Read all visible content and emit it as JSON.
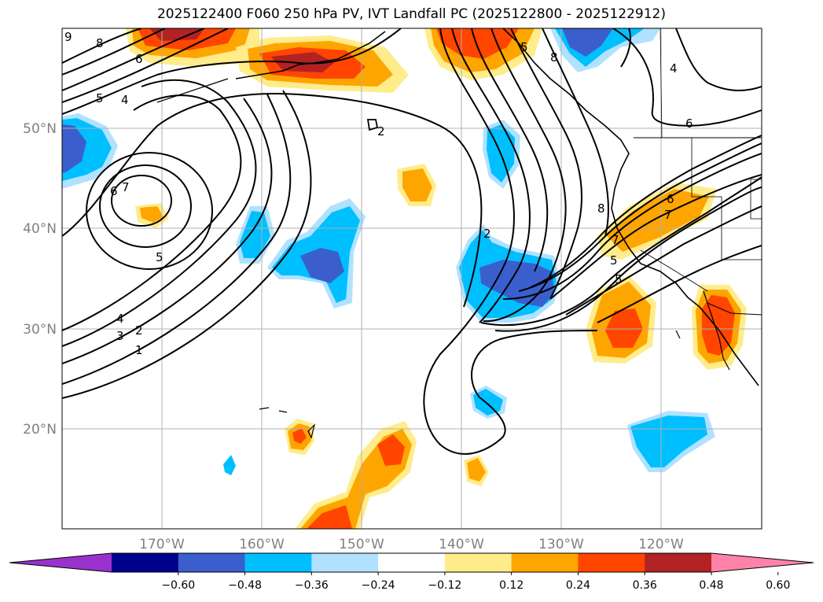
{
  "title": "2025122400 F060 250 hPa PV, IVT Landfall PC (2025122800 - 2025122912)",
  "map": {
    "lon_range": [
      -180,
      -110
    ],
    "lat_range": [
      10,
      60
    ],
    "lat_ticks": [
      {
        "value": 50,
        "label": "50°N"
      },
      {
        "value": 40,
        "label": "40°N"
      },
      {
        "value": 30,
        "label": "30°N"
      },
      {
        "value": 20,
        "label": "20°N"
      }
    ],
    "lon_ticks": [
      {
        "value": -170,
        "label": "170°W"
      },
      {
        "value": -160,
        "label": "160°W"
      },
      {
        "value": -150,
        "label": "150°W"
      },
      {
        "value": -140,
        "label": "140°W"
      },
      {
        "value": -130,
        "label": "130°W"
      },
      {
        "value": -120,
        "label": "120°W"
      }
    ],
    "gridlines": true,
    "pv_contour_labels": [
      "9",
      "8",
      "6",
      "5",
      "4",
      "7",
      "6",
      "5",
      "4",
      "3",
      "2",
      "1",
      "2",
      "8",
      "5",
      "7",
      "6",
      "5",
      "5",
      "6",
      "7",
      "8",
      "4",
      "2"
    ]
  },
  "colorbar": {
    "ticks": [
      "−0.60",
      "−0.48",
      "−0.36",
      "−0.24",
      "−0.12",
      "0.12",
      "0.24",
      "0.36",
      "0.48",
      "0.60"
    ],
    "colors": [
      "#9932cc",
      "#00008b",
      "#3a5fcd",
      "#00bfff",
      "#b0e2ff",
      "#ffffff",
      "#ffec8b",
      "#ffa500",
      "#ff4500",
      "#b22222",
      "#ff83a8"
    ],
    "extend": "both"
  }
}
